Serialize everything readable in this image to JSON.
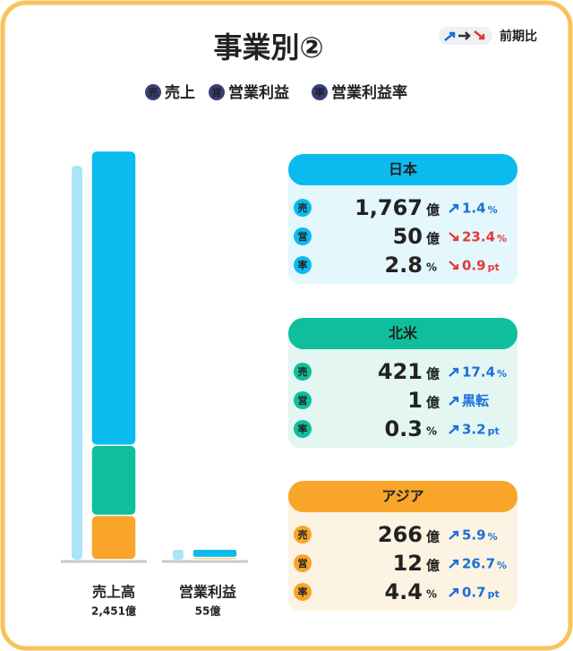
{
  "header": {
    "title": "事業別②",
    "legend_note": "前期比",
    "legend": [
      "売上",
      "営業利益",
      "営業利益率"
    ]
  },
  "icons": [
    "売",
    "営",
    "率"
  ],
  "totals": [
    {
      "label": "売上高",
      "value": "2,451億",
      "row": 0
    },
    {
      "label": "営業利益",
      "value": "55億",
      "row": 1
    }
  ],
  "regions": [
    {
      "name": "日本",
      "color": "#0bbbef",
      "light": "#e4f7fd",
      "rows": [
        {
          "value": 1767,
          "value_label": "1,767",
          "unit": "億",
          "dir": "up",
          "change": 1.4,
          "change_unit": "%"
        },
        {
          "value": 50,
          "unit": "億",
          "dir": "down",
          "change": 23.4,
          "change_unit": "%"
        },
        {
          "value": 2.8,
          "unit": "%",
          "dir": "down",
          "change": 0.9,
          "change_unit": "pt"
        }
      ]
    },
    {
      "name": "北米",
      "color": "#0fbf9c",
      "light": "#e3f6f1",
      "rows": [
        {
          "value": 421,
          "unit": "億",
          "dir": "up",
          "change": 17.4,
          "change_unit": "%"
        },
        {
          "value": 1,
          "unit": "億",
          "dir": "up",
          "change": "黒転"
        },
        {
          "value": 0.3,
          "unit": "%",
          "dir": "up",
          "change": 3.2,
          "change_unit": "pt"
        }
      ]
    },
    {
      "name": "アジア",
      "color": "#f8a52a",
      "light": "#fdf3e3",
      "rows": [
        {
          "value": 266,
          "unit": "億",
          "dir": "up",
          "change": 5.9,
          "change_unit": "%"
        },
        {
          "value": 12,
          "unit": "億",
          "dir": "up",
          "change": 26.7,
          "change_unit": "%"
        },
        {
          "value": 4.4,
          "unit": "%",
          "dir": "up",
          "change": 0.7,
          "change_unit": "pt"
        }
      ]
    }
  ]
}
